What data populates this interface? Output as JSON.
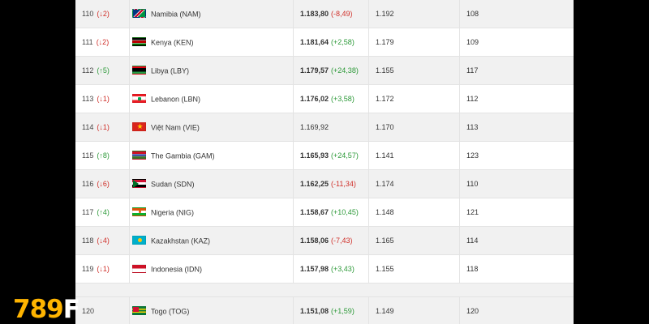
{
  "rows": [
    {
      "rank": "110",
      "move": "(↓2)",
      "move_dir": "down",
      "team": "Namibia (NAM)",
      "flag": "namibia-flag-icon",
      "points": "1.183,80",
      "delta": "(-8,49)",
      "delta_dir": "neg",
      "prev_points": "1.192",
      "prev_rank": "108"
    },
    {
      "rank": "111",
      "move": "(↓2)",
      "move_dir": "down",
      "team": "Kenya (KEN)",
      "flag": "kenya-flag-icon",
      "points": "1.181,64",
      "delta": "(+2,58)",
      "delta_dir": "pos",
      "prev_points": "1.179",
      "prev_rank": "109"
    },
    {
      "rank": "112",
      "move": "(↑5)",
      "move_dir": "up",
      "team": "Libya (LBY)",
      "flag": "libya-flag-icon",
      "points": "1.179,57",
      "delta": "(+24,38)",
      "delta_dir": "pos",
      "prev_points": "1.155",
      "prev_rank": "117"
    },
    {
      "rank": "113",
      "move": "(↓1)",
      "move_dir": "down",
      "team": "Lebanon (LBN)",
      "flag": "lebanon-flag-icon",
      "points": "1.176,02",
      "delta": "(+3,58)",
      "delta_dir": "pos",
      "prev_points": "1.172",
      "prev_rank": "112"
    },
    {
      "rank": "114",
      "move": "(↓1)",
      "move_dir": "down",
      "team": "Việt Nam (VIE)",
      "flag": "vietnam-flag-icon",
      "points": "1.169,92",
      "delta": "",
      "delta_dir": "none",
      "prev_points": "1.170",
      "prev_rank": "113"
    },
    {
      "rank": "115",
      "move": "(↑8)",
      "move_dir": "up",
      "team": "The Gambia (GAM)",
      "flag": "gambia-flag-icon",
      "points": "1.165,93",
      "delta": "(+24,57)",
      "delta_dir": "pos",
      "prev_points": "1.141",
      "prev_rank": "123"
    },
    {
      "rank": "116",
      "move": "(↓6)",
      "move_dir": "down",
      "team": "Sudan (SDN)",
      "flag": "sudan-flag-icon",
      "points": "1.162,25",
      "delta": "(-11,34)",
      "delta_dir": "neg",
      "prev_points": "1.174",
      "prev_rank": "110"
    },
    {
      "rank": "117",
      "move": "(↑4)",
      "move_dir": "up",
      "team": "Nigeria (NIG)",
      "flag": "niger-flag-icon",
      "points": "1.158,67",
      "delta": "(+10,45)",
      "delta_dir": "pos",
      "prev_points": "1.148",
      "prev_rank": "121"
    },
    {
      "rank": "118",
      "move": "(↓4)",
      "move_dir": "down",
      "team": "Kazakhstan (KAZ)",
      "flag": "kazakhstan-flag-icon",
      "points": "1.158,06",
      "delta": "(-7,43)",
      "delta_dir": "neg",
      "prev_points": "1.165",
      "prev_rank": "114"
    },
    {
      "rank": "119",
      "move": "(↓1)",
      "move_dir": "down",
      "team": "Indonesia (IDN)",
      "flag": "indonesia-flag-icon",
      "points": "1.157,98",
      "delta": "(+3,43)",
      "delta_dir": "pos",
      "prev_points": "1.155",
      "prev_rank": "118"
    }
  ],
  "last_row": {
    "rank": "120",
    "team": "Togo (TOG)",
    "flag": "togo-flag-icon",
    "points": "1.151,08",
    "delta": "(+1,59)",
    "prev_points": "1.149",
    "prev_rank": "120"
  },
  "logo": {
    "main": "789",
    "accent": "F"
  },
  "colors": {
    "down": "#d0302a",
    "up": "#2e9a3a",
    "logo": "#ffb400"
  }
}
